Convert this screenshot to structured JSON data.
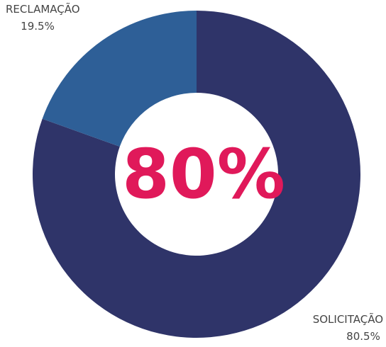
{
  "chart_data": {
    "type": "donut",
    "categories": [
      "SOLICITAÇÃO",
      "RECLAMAÇÃO"
    ],
    "values": [
      80.5,
      19.5
    ],
    "value_labels": [
      "80.5%",
      "19.5%"
    ],
    "colors": [
      "#2f3469",
      "#2e5f97"
    ],
    "center_label": "80%",
    "center_color": "#e0195a"
  }
}
